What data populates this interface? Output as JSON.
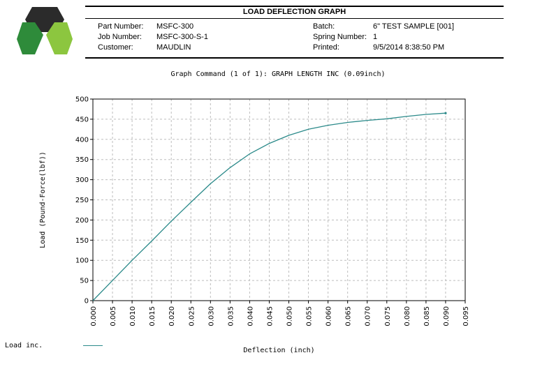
{
  "header": {
    "title": "LOAD DEFLECTION GRAPH",
    "part_number_label": "Part Number:",
    "part_number": "MSFC-300",
    "job_number_label": "Job Number:",
    "job_number": "MSFC-300-S-1",
    "customer_label": "Customer:",
    "customer": "MAUDLIN",
    "batch_label": "Batch:",
    "batch": "6\" TEST SAMPLE [001]",
    "spring_number_label": "Spring Number:",
    "spring_number": "1",
    "printed_label": "Printed:",
    "printed": "9/5/2014 8:38:50 PM"
  },
  "logo": {
    "icon": "hexagon-cube-logo",
    "colors": [
      "#2b2b2b",
      "#2e8b3a",
      "#8cc63f"
    ]
  },
  "legend": {
    "label": "Load inc.",
    "color": "#2b8a8a"
  },
  "chart_data": {
    "type": "line",
    "title": "Graph Command (1 of 1): GRAPH LENGTH INC (0.09inch)",
    "xlabel": "Deflection (inch)",
    "ylabel": "Load (Pound-Force(lbf))",
    "xlim": [
      0,
      0.095
    ],
    "ylim": [
      0,
      500
    ],
    "x_ticks": [
      "0.000",
      "0.005",
      "0.010",
      "0.015",
      "0.020",
      "0.025",
      "0.030",
      "0.035",
      "0.040",
      "0.045",
      "0.050",
      "0.055",
      "0.060",
      "0.065",
      "0.070",
      "0.075",
      "0.080",
      "0.085",
      "0.090",
      "0.095"
    ],
    "y_ticks": [
      "0",
      "50",
      "100",
      "150",
      "200",
      "250",
      "300",
      "350",
      "400",
      "450",
      "500"
    ],
    "grid": true,
    "series": [
      {
        "name": "Load inc.",
        "color": "#2b8a8a",
        "x": [
          0,
          0.005,
          0.01,
          0.015,
          0.02,
          0.025,
          0.03,
          0.035,
          0.04,
          0.045,
          0.05,
          0.055,
          0.06,
          0.065,
          0.07,
          0.075,
          0.08,
          0.085,
          0.09
        ],
        "y": [
          0,
          50,
          100,
          148,
          197,
          244,
          290,
          330,
          364,
          390,
          410,
          425,
          435,
          442,
          447,
          451,
          457,
          462,
          465
        ]
      }
    ]
  }
}
